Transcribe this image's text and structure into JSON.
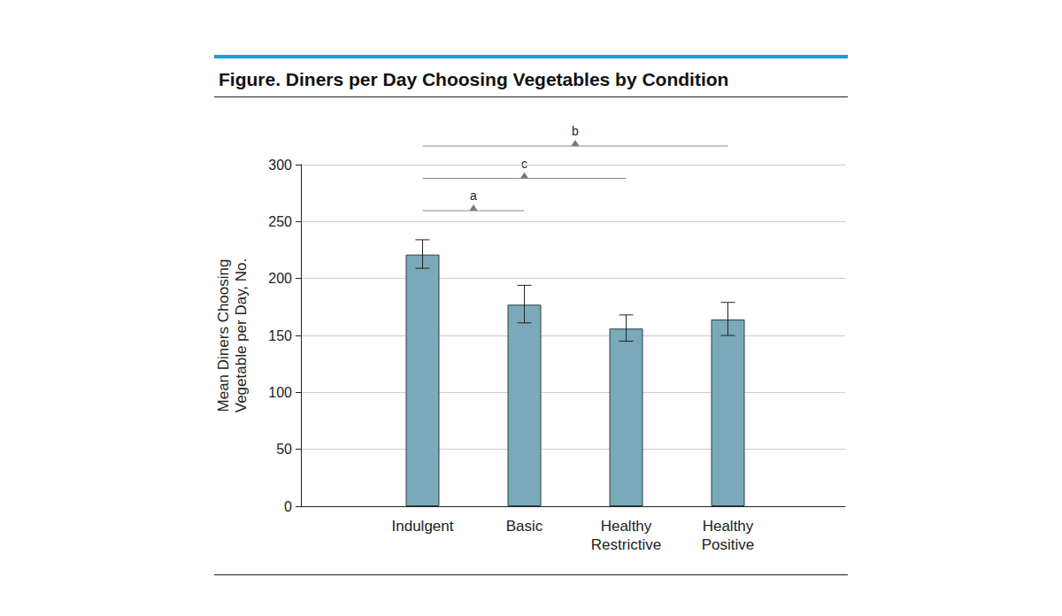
{
  "chart_data": {
    "type": "bar",
    "title": "Figure. Diners per Day Choosing Vegetables by Condition",
    "ylabel": "Mean Diners Choosing\nVegetable per Day, No.",
    "categories": [
      "Indulgent",
      "Basic",
      "Healthy Restrictive",
      "Healthy Positive"
    ],
    "values": [
      221,
      177,
      156,
      164
    ],
    "error_bars": [
      {
        "low": 209,
        "high": 234
      },
      {
        "low": 161,
        "high": 194
      },
      {
        "low": 145,
        "high": 168
      },
      {
        "low": 150,
        "high": 179
      }
    ],
    "brackets": [
      {
        "label": "a",
        "from": "Indulgent",
        "to": "Basic"
      },
      {
        "label": "c",
        "from": "Indulgent",
        "to": "Healthy Restrictive"
      },
      {
        "label": "b",
        "from": "Indulgent",
        "to": "Healthy Positive"
      }
    ],
    "color": "#7aaab9",
    "ylim": [
      0,
      300
    ],
    "yticks": [
      0,
      50,
      100,
      150,
      200,
      250,
      300
    ],
    "grid": true,
    "data_labels": false
  }
}
